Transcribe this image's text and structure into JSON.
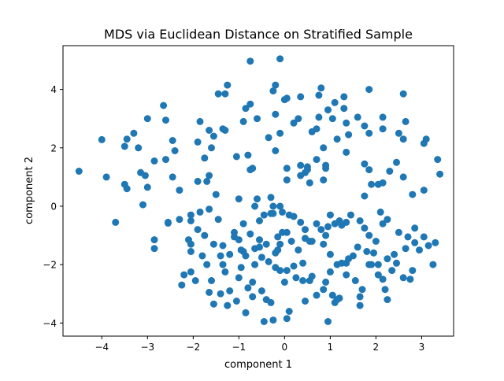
{
  "chart_data": {
    "type": "scatter",
    "title": "MDS via Euclidean Distance on Stratified Sample",
    "xlabel": "component 1",
    "ylabel": "component 2",
    "xlim": [
      -4.85,
      3.7
    ],
    "ylim": [
      -4.45,
      5.5
    ],
    "xticks": [
      -4,
      -3,
      -2,
      -1,
      0,
      1,
      2,
      3
    ],
    "yticks": [
      -4,
      -2,
      0,
      2,
      4
    ],
    "xtick_labels": [
      "−4",
      "−3",
      "−2",
      "−1",
      "0",
      "1",
      "2",
      "3"
    ],
    "ytick_labels": [
      "−4",
      "−2",
      "0",
      "2",
      "4"
    ],
    "grid": false,
    "marker_color": "#1f77b4",
    "points": [
      [
        -4.5,
        1.2
      ],
      [
        -4.0,
        2.28
      ],
      [
        -3.9,
        1.0
      ],
      [
        -3.7,
        -0.55
      ],
      [
        -3.5,
        2.05
      ],
      [
        -3.45,
        2.3
      ],
      [
        -3.3,
        2.5
      ],
      [
        -3.5,
        0.75
      ],
      [
        -3.45,
        0.6
      ],
      [
        -3.2,
        2.0
      ],
      [
        -3.15,
        1.15
      ],
      [
        -3.0,
        3.0
      ],
      [
        -3.05,
        1.05
      ],
      [
        -3.0,
        0.65
      ],
      [
        -3.1,
        0.05
      ],
      [
        -2.85,
        1.55
      ],
      [
        -2.6,
        1.6
      ],
      [
        -2.85,
        -1.15
      ],
      [
        -2.85,
        -1.45
      ],
      [
        -2.65,
        3.45
      ],
      [
        -2.6,
        2.95
      ],
      [
        -2.45,
        2.25
      ],
      [
        -2.4,
        1.9
      ],
      [
        -2.45,
        1.0
      ],
      [
        -2.55,
        -0.58
      ],
      [
        -2.3,
        0.55
      ],
      [
        -2.3,
        -0.45
      ],
      [
        -2.2,
        -2.35
      ],
      [
        -2.25,
        -2.7
      ],
      [
        -2.1,
        -1.15
      ],
      [
        -2.05,
        -1.55
      ],
      [
        -2.05,
        -1.3
      ],
      [
        -2.05,
        -0.5
      ],
      [
        -1.9,
        -0.8
      ],
      [
        -1.85,
        -0.2
      ],
      [
        -1.9,
        0.85
      ],
      [
        -1.8,
        -1.7
      ],
      [
        -1.75,
        -1.0
      ],
      [
        -1.65,
        1.05
      ],
      [
        -1.65,
        -0.1
      ],
      [
        -1.7,
        -2.0
      ],
      [
        -1.55,
        -1.3
      ],
      [
        -1.5,
        0.4
      ],
      [
        -1.45,
        -0.45
      ],
      [
        -1.55,
        -3.35
      ],
      [
        -1.4,
        -3.0
      ],
      [
        -1.6,
        -2.55
      ],
      [
        -1.35,
        -1.35
      ],
      [
        -1.4,
        -1.7
      ],
      [
        -1.1,
        -0.9
      ],
      [
        -1.2,
        -1.65
      ],
      [
        -1.1,
        -1.05
      ],
      [
        -1.0,
        -1.15
      ],
      [
        -0.95,
        -1.5
      ],
      [
        -1.05,
        -3.25
      ],
      [
        -1.0,
        -2.45
      ],
      [
        -0.95,
        -2.1
      ],
      [
        -0.85,
        -1.7
      ],
      [
        -0.9,
        -1.55
      ],
      [
        -0.9,
        -0.6
      ],
      [
        -0.75,
        -0.95
      ],
      [
        -0.8,
        -2.8
      ],
      [
        -0.7,
        -2.6
      ],
      [
        -0.65,
        -2.0
      ],
      [
        -0.65,
        -1.45
      ],
      [
        -0.55,
        -1.15
      ],
      [
        -0.55,
        -1.4
      ],
      [
        -0.5,
        -1.75
      ],
      [
        -0.55,
        -0.5
      ],
      [
        -0.45,
        -0.3
      ],
      [
        -0.35,
        -1.9
      ],
      [
        -0.4,
        -1.3
      ],
      [
        -0.3,
        -0.25
      ],
      [
        -0.2,
        -2.1
      ],
      [
        -0.2,
        -1.6
      ],
      [
        -0.15,
        -1.5
      ],
      [
        -0.1,
        -1.3
      ],
      [
        -0.05,
        -0.9
      ],
      [
        -0.25,
        -0.25
      ],
      [
        -0.4,
        -3.2
      ],
      [
        -0.45,
        -3.95
      ],
      [
        -0.25,
        -3.9
      ],
      [
        -0.3,
        -3.3
      ],
      [
        -0.7,
        -3.1
      ],
      [
        -0.5,
        -2.9
      ],
      [
        -0.85,
        -3.65
      ],
      [
        -1.25,
        -3.4
      ],
      [
        -1.2,
        -2.9
      ],
      [
        -1.3,
        -2.25
      ],
      [
        -1.35,
        -2.0
      ],
      [
        -1.65,
        -2.95
      ],
      [
        -1.95,
        -2.55
      ],
      [
        -2.05,
        -2.25
      ],
      [
        -2.55,
        -0.55
      ],
      [
        -2.05,
        -0.3
      ],
      [
        -1.7,
        0.85
      ],
      [
        -1.55,
        2.4
      ],
      [
        -1.6,
        2.0
      ],
      [
        -1.75,
        1.65
      ],
      [
        -1.9,
        2.2
      ],
      [
        -1.85,
        2.9
      ],
      [
        -1.65,
        2.6
      ],
      [
        -1.35,
        2.65
      ],
      [
        -1.45,
        3.85
      ],
      [
        -1.3,
        3.85
      ],
      [
        -1.25,
        4.15
      ],
      [
        -1.3,
        2.6
      ],
      [
        -1.05,
        1.7
      ],
      [
        -0.85,
        3.35
      ],
      [
        -0.9,
        2.9
      ],
      [
        -0.75,
        3.5
      ],
      [
        -0.6,
        3.0
      ],
      [
        -0.75,
        1.25
      ],
      [
        -0.7,
        1.3
      ],
      [
        -0.6,
        0.25
      ],
      [
        -0.65,
        0.0
      ],
      [
        -0.8,
        1.75
      ],
      [
        -1.0,
        0.25
      ],
      [
        -0.3,
        0.3
      ],
      [
        -0.25,
        0.0
      ],
      [
        -0.1,
        0.0
      ],
      [
        -0.05,
        -0.2
      ],
      [
        0.1,
        -0.3
      ],
      [
        0.05,
        -0.9
      ],
      [
        0.2,
        -0.35
      ],
      [
        0.35,
        -0.55
      ],
      [
        0.45,
        -0.8
      ],
      [
        0.45,
        -1.1
      ],
      [
        0.6,
        -1.2
      ],
      [
        0.7,
        -0.6
      ],
      [
        0.8,
        -0.8
      ],
      [
        0.9,
        -1.0
      ],
      [
        0.85,
        -1.3
      ],
      [
        0.95,
        -0.7
      ],
      [
        1.1,
        -0.6
      ],
      [
        1.0,
        -0.3
      ],
      [
        1.2,
        -0.5
      ],
      [
        1.25,
        -0.65
      ],
      [
        1.35,
        -0.55
      ],
      [
        1.45,
        -0.3
      ],
      [
        1.65,
        -0.5
      ],
      [
        1.75,
        -0.75
      ],
      [
        1.85,
        -1.0
      ],
      [
        2.1,
        -0.2
      ],
      [
        2.15,
        -0.6
      ],
      [
        2.25,
        -0.45
      ],
      [
        2.0,
        -1.2
      ],
      [
        1.95,
        -1.6
      ],
      [
        1.6,
        -1.4
      ],
      [
        1.5,
        -1.7
      ],
      [
        1.35,
        -1.95
      ],
      [
        1.15,
        -2.0
      ],
      [
        1.0,
        -2.25
      ],
      [
        0.9,
        -2.6
      ],
      [
        0.85,
        -2.85
      ],
      [
        0.7,
        -3.05
      ],
      [
        0.6,
        -2.4
      ],
      [
        0.55,
        -2.55
      ],
      [
        0.4,
        -2.55
      ],
      [
        0.25,
        -2.45
      ],
      [
        0.2,
        -2.05
      ],
      [
        0.05,
        -2.2
      ],
      [
        0.0,
        -2.6
      ],
      [
        -0.1,
        -2.2
      ],
      [
        -0.15,
        -1.05
      ],
      [
        0.15,
        -1.2
      ],
      [
        0.3,
        -1.5
      ],
      [
        0.4,
        -1.95
      ],
      [
        0.55,
        -1.2
      ],
      [
        1.0,
        -1.65
      ],
      [
        1.25,
        -1.95
      ],
      [
        1.35,
        -2.35
      ],
      [
        1.55,
        -2.55
      ],
      [
        1.7,
        -2.85
      ],
      [
        1.65,
        -3.1
      ],
      [
        1.65,
        -3.4
      ],
      [
        1.05,
        -3.05
      ],
      [
        1.1,
        -3.3
      ],
      [
        1.2,
        -3.15
      ],
      [
        0.95,
        -3.95
      ],
      [
        0.45,
        -3.25
      ],
      [
        0.1,
        -3.6
      ],
      [
        0.05,
        -3.85
      ],
      [
        1.85,
        -2.0
      ],
      [
        2.05,
        -2.35
      ],
      [
        2.15,
        -2.5
      ],
      [
        2.2,
        -2.85
      ],
      [
        2.25,
        -3.2
      ],
      [
        2.25,
        -1.8
      ],
      [
        2.4,
        -1.65
      ],
      [
        2.35,
        -2.2
      ],
      [
        2.5,
        -0.9
      ],
      [
        2.65,
        -1.45
      ],
      [
        2.7,
        -1.05
      ],
      [
        2.85,
        -1.25
      ],
      [
        2.8,
        -2.2
      ],
      [
        2.95,
        -1.5
      ],
      [
        2.75,
        -2.5
      ],
      [
        2.6,
        -2.45
      ],
      [
        3.05,
        -1.05
      ],
      [
        3.15,
        -1.35
      ],
      [
        3.3,
        -1.25
      ],
      [
        3.25,
        -2.0
      ],
      [
        2.85,
        -0.75
      ],
      [
        2.45,
        -1.95
      ],
      [
        2.05,
        -2.0
      ],
      [
        1.9,
        -2.0
      ],
      [
        1.8,
        -1.55
      ],
      [
        1.4,
        -1.8
      ],
      [
        1.15,
        -3.2
      ],
      [
        -0.1,
        5.05
      ],
      [
        -0.75,
        4.97
      ],
      [
        -0.2,
        4.15
      ],
      [
        -0.25,
        3.95
      ],
      [
        0.0,
        3.65
      ],
      [
        0.05,
        3.7
      ],
      [
        -0.2,
        3.15
      ],
      [
        -0.35,
        2.35
      ],
      [
        -0.2,
        1.9
      ],
      [
        -0.1,
        2.5
      ],
      [
        0.05,
        1.3
      ],
      [
        0.2,
        2.85
      ],
      [
        0.3,
        3.0
      ],
      [
        0.35,
        3.75
      ],
      [
        0.35,
        1.4
      ],
      [
        0.45,
        1.15
      ],
      [
        0.5,
        1.35
      ],
      [
        0.6,
        2.55
      ],
      [
        0.7,
        2.65
      ],
      [
        0.75,
        3.05
      ],
      [
        0.8,
        4.05
      ],
      [
        0.75,
        3.8
      ],
      [
        0.95,
        3.3
      ],
      [
        1.05,
        3.0
      ],
      [
        1.1,
        3.55
      ],
      [
        1.3,
        3.35
      ],
      [
        1.3,
        3.75
      ],
      [
        1.35,
        2.85
      ],
      [
        1.4,
        2.45
      ],
      [
        1.15,
        2.3
      ],
      [
        1.35,
        1.85
      ],
      [
        0.9,
        1.4
      ],
      [
        0.9,
        1.3
      ],
      [
        0.85,
        0.9
      ],
      [
        0.85,
        2.0
      ],
      [
        0.7,
        1.6
      ],
      [
        0.5,
        1.25
      ],
      [
        0.35,
        1.05
      ],
      [
        0.05,
        0.9
      ],
      [
        0.55,
        0.8
      ],
      [
        1.6,
        3.05
      ],
      [
        1.75,
        2.75
      ],
      [
        1.85,
        2.5
      ],
      [
        1.85,
        4.0
      ],
      [
        2.15,
        3.05
      ],
      [
        2.15,
        2.65
      ],
      [
        1.75,
        1.45
      ],
      [
        1.85,
        1.25
      ],
      [
        1.9,
        0.75
      ],
      [
        1.75,
        0.35
      ],
      [
        2.05,
        0.75
      ],
      [
        2.15,
        0.8
      ],
      [
        2.3,
        1.2
      ],
      [
        2.6,
        1.0
      ],
      [
        2.45,
        1.5
      ],
      [
        2.5,
        2.5
      ],
      [
        2.6,
        2.3
      ],
      [
        2.65,
        2.9
      ],
      [
        2.6,
        3.85
      ],
      [
        2.8,
        0.4
      ],
      [
        3.05,
        2.15
      ],
      [
        3.1,
        2.3
      ],
      [
        3.05,
        0.55
      ],
      [
        3.35,
        1.6
      ],
      [
        3.4,
        1.1
      ]
    ]
  }
}
